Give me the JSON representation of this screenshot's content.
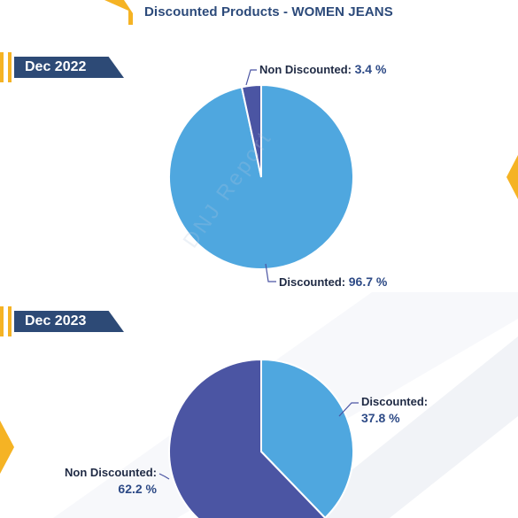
{
  "title": "Discounted Products - WOMEN JEANS",
  "watermark": "DNJ Report",
  "colors": {
    "discounted": "#4fa7df",
    "non_discounted": "#4b55a3",
    "accent": "#f5b324",
    "ribbon": "#2d4a76"
  },
  "chart_data": [
    {
      "type": "pie",
      "period": "Dec 2022",
      "slices": [
        {
          "label": "Discounted:",
          "value": 96.7,
          "value_text": "96.7 %"
        },
        {
          "label": "Non Discounted:",
          "value": 3.4,
          "value_text": "3.4 %"
        }
      ]
    },
    {
      "type": "pie",
      "period": "Dec 2023",
      "slices": [
        {
          "label": "Discounted:",
          "value": 37.8,
          "value_text": "37.8 %"
        },
        {
          "label": "Non Discounted:",
          "value": 62.2,
          "value_text": "62.2 %"
        }
      ]
    }
  ]
}
